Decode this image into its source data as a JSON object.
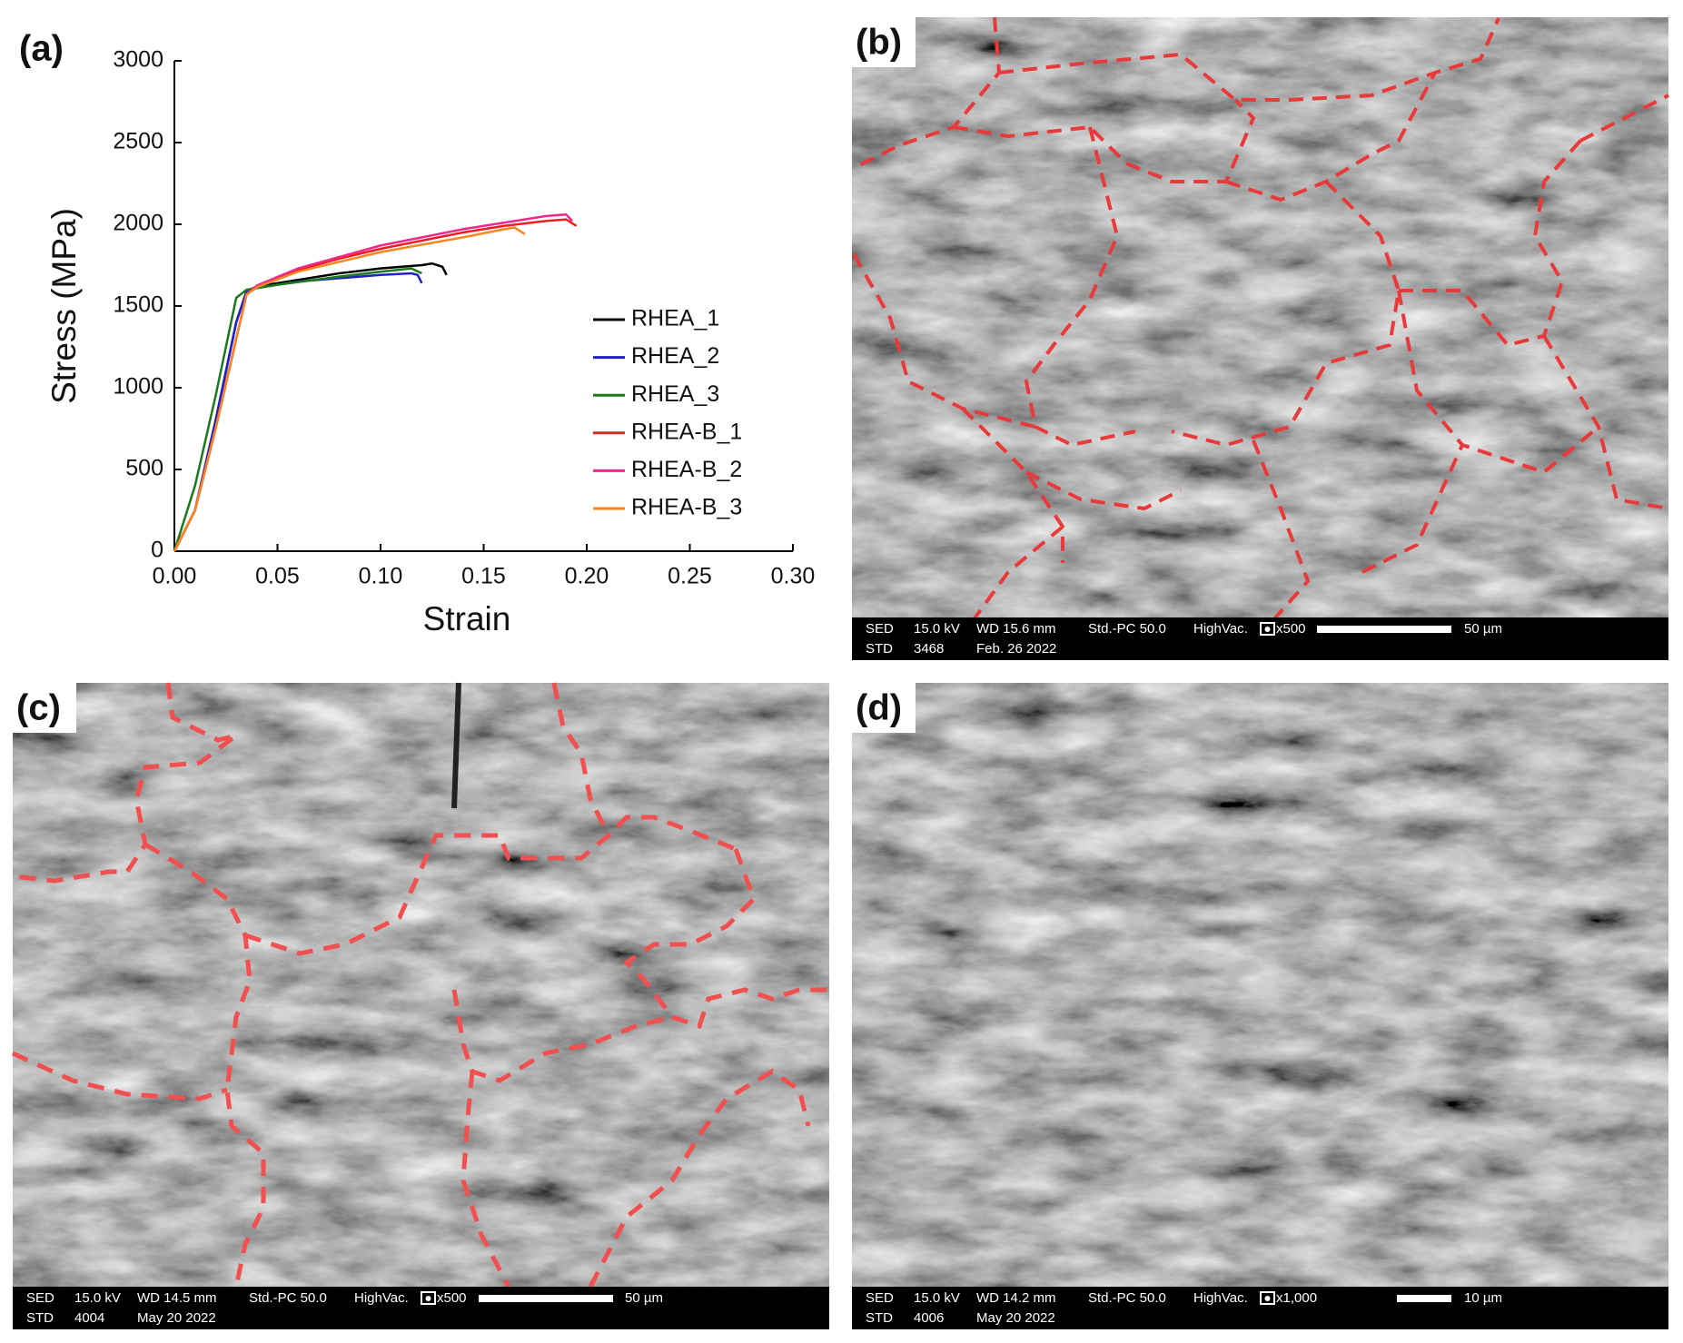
{
  "chart_data": {
    "type": "line",
    "xlabel": "Strain",
    "ylabel": "Stress (MPa)",
    "xlim": [
      0,
      0.3
    ],
    "ylim": [
      0,
      3000
    ],
    "xticks": [
      {
        "value": 0,
        "label": "0.00"
      },
      {
        "value": 0.05,
        "label": "0.05"
      },
      {
        "value": 0.1,
        "label": "0.10"
      },
      {
        "value": 0.15,
        "label": "0.15"
      },
      {
        "value": 0.2,
        "label": "0.20"
      },
      {
        "value": 0.25,
        "label": "0.25"
      },
      {
        "value": 0.3,
        "label": "0.30"
      }
    ],
    "yticks": [
      0,
      500,
      1000,
      1500,
      2000,
      2500,
      3000
    ],
    "legend": "right",
    "series": [
      {
        "name": "RHEA_1",
        "color": "#000000",
        "x": [
          0,
          0.01,
          0.02,
          0.03,
          0.035,
          0.04,
          0.06,
          0.08,
          0.1,
          0.12,
          0.125,
          0.13,
          0.132
        ],
        "values": [
          0,
          250,
          800,
          1400,
          1590,
          1620,
          1660,
          1700,
          1730,
          1750,
          1760,
          1740,
          1690
        ]
      },
      {
        "name": "RHEA_2",
        "color": "#1f1fd0",
        "x": [
          0,
          0.01,
          0.02,
          0.03,
          0.035,
          0.04,
          0.06,
          0.08,
          0.1,
          0.115,
          0.118,
          0.12
        ],
        "values": [
          0,
          250,
          800,
          1400,
          1590,
          1610,
          1650,
          1670,
          1690,
          1700,
          1690,
          1640
        ]
      },
      {
        "name": "RHEA_3",
        "color": "#1a7a1a",
        "x": [
          0,
          0.01,
          0.02,
          0.03,
          0.035,
          0.05,
          0.08,
          0.1,
          0.115,
          0.12
        ],
        "values": [
          0,
          400,
          950,
          1550,
          1600,
          1630,
          1680,
          1710,
          1730,
          1700
        ]
      },
      {
        "name": "RHEA-B_1",
        "color": "#ee1c25",
        "x": [
          0,
          0.01,
          0.02,
          0.03,
          0.035,
          0.04,
          0.06,
          0.08,
          0.1,
          0.12,
          0.14,
          0.16,
          0.18,
          0.19,
          0.195
        ],
        "values": [
          0,
          250,
          750,
          1300,
          1570,
          1620,
          1720,
          1790,
          1850,
          1900,
          1950,
          1990,
          2020,
          2030,
          1990
        ]
      },
      {
        "name": "RHEA-B_2",
        "color": "#ee2a8a",
        "x": [
          0,
          0.01,
          0.02,
          0.03,
          0.035,
          0.04,
          0.06,
          0.1,
          0.14,
          0.18,
          0.19,
          0.193
        ],
        "values": [
          0,
          250,
          750,
          1300,
          1570,
          1625,
          1730,
          1870,
          1970,
          2050,
          2060,
          2020
        ]
      },
      {
        "name": "RHEA-B_3",
        "color": "#f7861c",
        "x": [
          0,
          0.01,
          0.02,
          0.03,
          0.035,
          0.04,
          0.06,
          0.1,
          0.14,
          0.16,
          0.165,
          0.17
        ],
        "values": [
          0,
          250,
          750,
          1300,
          1570,
          1615,
          1710,
          1830,
          1920,
          1970,
          1980,
          1940
        ]
      }
    ]
  },
  "panels": {
    "a": {
      "label": "(a)"
    },
    "b": {
      "label": "(b)",
      "row1": [
        "SED",
        "15.0 kV",
        "WD 15.6 mm",
        "Std.-PC 50.0",
        "HighVac.",
        "x500"
      ],
      "row2": [
        "STD",
        "3468",
        "Feb. 26 2022"
      ],
      "scale": "50 µm"
    },
    "c": {
      "label": "(c)",
      "row1": [
        "SED",
        "15.0 kV",
        "WD 14.5 mm",
        "Std.-PC 50.0",
        "HighVac.",
        "x500"
      ],
      "row2": [
        "STD",
        "4004",
        "May 20 2022"
      ],
      "scale": "50 µm"
    },
    "d": {
      "label": "(d)",
      "row1": [
        "SED",
        "15.0 kV",
        "WD 14.2 mm",
        "Std.-PC 50.0",
        "HighVac.",
        "x1,000"
      ],
      "row2": [
        "STD",
        "4006",
        "May 20 2022"
      ],
      "scale": "10 µm"
    }
  }
}
